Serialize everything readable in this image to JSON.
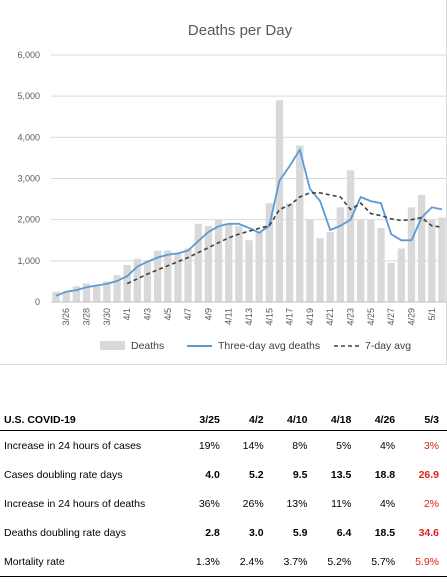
{
  "chart_data": {
    "type": "bar",
    "title": "Deaths per Day",
    "xlabel": "",
    "ylabel": "",
    "ylim": [
      0,
      6000
    ],
    "yticks": [
      "0",
      "1,000",
      "2,000",
      "3,000",
      "4,000",
      "5,000",
      "6,000"
    ],
    "grid": true,
    "legend_position": "bottom",
    "x_tick_labels": [
      "3/26",
      "3/28",
      "3/30",
      "4/1",
      "4/3",
      "4/5",
      "4/7",
      "4/9",
      "4/11",
      "4/13",
      "4/15",
      "4/17",
      "4/19",
      "4/21",
      "4/23",
      "4/25",
      "4/27",
      "4/29",
      "5/1"
    ],
    "x": [
      "3/25",
      "3/26",
      "3/27",
      "3/28",
      "3/29",
      "3/30",
      "3/31",
      "4/1",
      "4/2",
      "4/3",
      "4/4",
      "4/5",
      "4/6",
      "4/7",
      "4/8",
      "4/9",
      "4/10",
      "4/11",
      "4/12",
      "4/13",
      "4/14",
      "4/15",
      "4/16",
      "4/17",
      "4/18",
      "4/19",
      "4/20",
      "4/21",
      "4/22",
      "4/23",
      "4/24",
      "4/25",
      "4/26",
      "4/27",
      "4/28",
      "4/29",
      "4/30",
      "5/1",
      "5/2"
    ],
    "series": [
      {
        "name": "Deaths",
        "kind": "bar",
        "color": "#d9d9d9",
        "values": [
          250,
          250,
          380,
          450,
          380,
          500,
          650,
          900,
          1050,
          1000,
          1250,
          1250,
          1200,
          1300,
          1900,
          1850,
          2000,
          1900,
          1850,
          1500,
          1700,
          2400,
          4900,
          2400,
          3800,
          2000,
          1550,
          1700,
          2300,
          3200,
          2000,
          2000,
          1800,
          950,
          1300,
          2300,
          2600,
          2000,
          2050
        ]
      },
      {
        "name": "Three-day avg deaths",
        "kind": "line",
        "color": "#5b9bd5",
        "values": [
          150,
          250,
          290,
          360,
          400,
          440,
          510,
          630,
          860,
          980,
          1080,
          1150,
          1180,
          1250,
          1480,
          1700,
          1840,
          1900,
          1900,
          1800,
          1680,
          1850,
          2950,
          3300,
          3700,
          2750,
          2450,
          1750,
          1850,
          2000,
          2550,
          2450,
          2400,
          1650,
          1500,
          1500,
          2050,
          2300,
          2250
        ]
      },
      {
        "name": "7-day avg",
        "kind": "line",
        "style": "dashed",
        "color": "#404040",
        "values": [
          null,
          null,
          null,
          null,
          null,
          null,
          null,
          450,
          560,
          680,
          780,
          880,
          980,
          1080,
          1200,
          1320,
          1440,
          1560,
          1650,
          1720,
          1790,
          1850,
          2250,
          2350,
          2550,
          2650,
          2650,
          2600,
          2550,
          2250,
          2400,
          2150,
          2100,
          2020,
          1980,
          2000,
          2050,
          1850,
          1820
        ]
      }
    ]
  },
  "table": {
    "header": {
      "label": "U.S. COVID-19",
      "cols": [
        "3/25",
        "4/2",
        "4/10",
        "4/18",
        "4/26",
        "5/3"
      ]
    },
    "rows": [
      {
        "label": "Increase in 24 hours of cases",
        "values": [
          "19%",
          "14%",
          "8%",
          "5%",
          "4%",
          "3%"
        ],
        "bold": false
      },
      {
        "label": "Cases doubling rate days",
        "values": [
          "4.0",
          "5.2",
          "9.5",
          "13.5",
          "18.8",
          "26.9"
        ],
        "bold": true
      },
      {
        "label": "Increase in 24 hours of deaths",
        "values": [
          "36%",
          "26%",
          "13%",
          "11%",
          "4%",
          "2%"
        ],
        "bold": false
      },
      {
        "label": "Deaths doubling rate days",
        "values": [
          "2.8",
          "3.0",
          "5.9",
          "6.4",
          "18.5",
          "34.6"
        ],
        "bold": true
      },
      {
        "label": "Mortality rate",
        "values": [
          "1.3%",
          "2.4%",
          "3.7%",
          "5.2%",
          "5.7%",
          "5.9%"
        ],
        "bold": false
      }
    ],
    "highlight_color": "#e0201b"
  }
}
